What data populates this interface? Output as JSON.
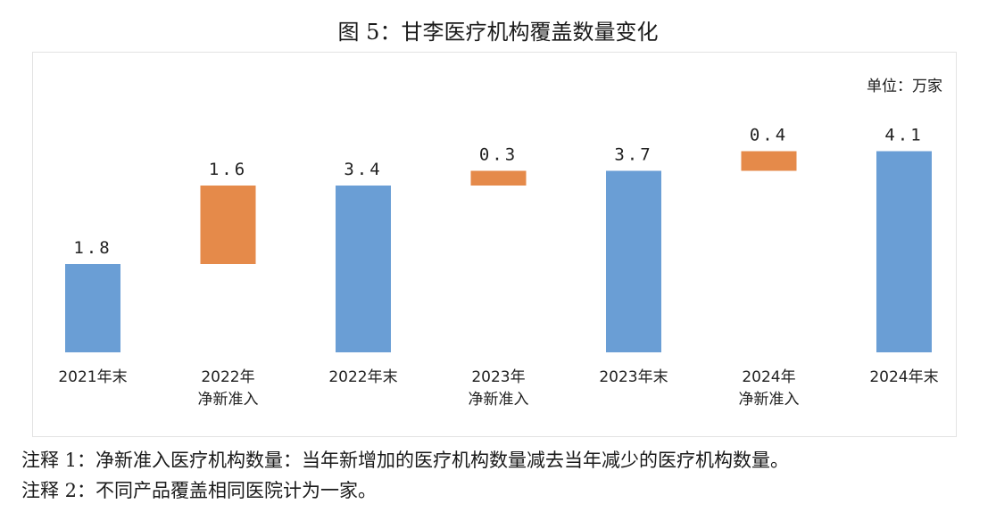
{
  "title": "图 5：甘李医疗机构覆盖数量变化",
  "unit_label": "单位：万家",
  "colors": {
    "total": "#6a9ed5",
    "delta": "#e58a4a"
  },
  "notes": [
    "注释 1：净新准入医疗机构数量：当年新增加的医疗机构数量减去当年减少的医疗机构数量。",
    "注释 2：不同产品覆盖相同医院计为一家。"
  ],
  "chart_data": {
    "type": "bar",
    "subtype": "waterfall",
    "categories": [
      [
        "2021年末"
      ],
      [
        "2022年",
        "净新准入"
      ],
      [
        "2022年末"
      ],
      [
        "2023年",
        "净新准入"
      ],
      [
        "2023年末"
      ],
      [
        "2024年",
        "净新准入"
      ],
      [
        "2024年末"
      ]
    ],
    "values": [
      1.8,
      1.6,
      3.4,
      0.3,
      3.7,
      0.4,
      4.1
    ],
    "value_labels": [
      "1.8",
      "1.6",
      "3.4",
      "0.3",
      "3.7",
      "0.4",
      "4.1"
    ],
    "kinds": [
      "total",
      "delta",
      "total",
      "delta",
      "total",
      "delta",
      "total"
    ],
    "ylim": [
      0,
      4.5
    ],
    "grid": false,
    "legend": "none",
    "xlabel": "",
    "ylabel": ""
  }
}
